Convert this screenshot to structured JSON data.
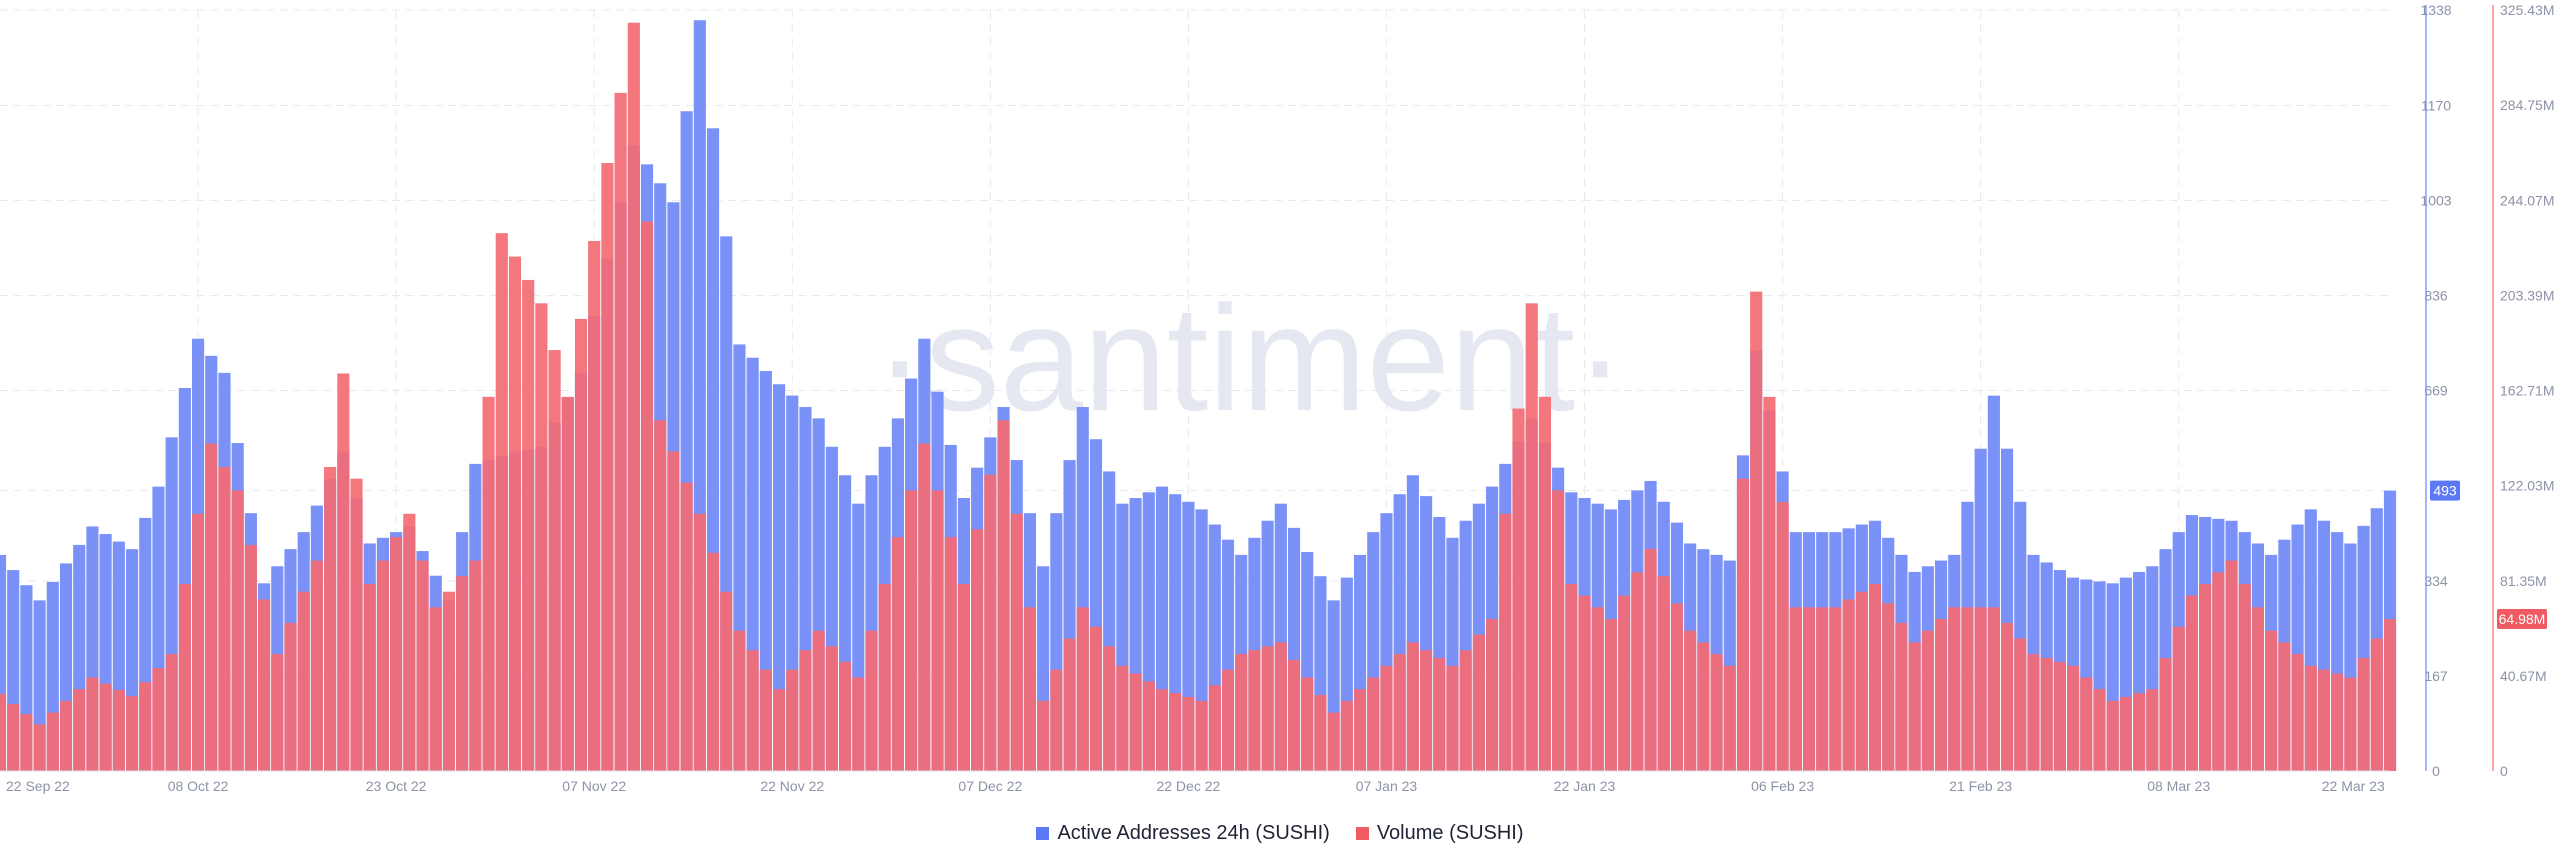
{
  "watermark": "·santiment·",
  "colors": {
    "active_addresses": "#6b86f7",
    "volume": "#f36b73",
    "grid": "#e7e9ef",
    "watermark": "#e5e8f1"
  },
  "current_values": {
    "active_addresses": "493",
    "volume": "64.98M"
  },
  "chart_data": {
    "type": "bar",
    "x_tick_labels": [
      "22 Sep 22",
      "08 Oct 22",
      "23 Oct 22",
      "07 Nov 22",
      "22 Nov 22",
      "07 Dec 22",
      "22 Dec 22",
      "07 Jan 23",
      "22 Jan 23",
      "06 Feb 23",
      "21 Feb 23",
      "08 Mar 23",
      "22 Mar 23"
    ],
    "x_range": [
      "2022-09-22",
      "2023-03-22"
    ],
    "grid": true,
    "legend_position": "bottom-center",
    "y_axes": [
      {
        "side": "right",
        "series": "Active Addresses 24h (SUSHI)",
        "ylim": [
          0,
          1338
        ],
        "tick_labels": [
          "0",
          "167",
          "334",
          "493",
          "669",
          "836",
          "1003",
          "1170",
          "1338"
        ]
      },
      {
        "side": "right-outer",
        "series": "Volume (SUSHI)",
        "ylim": [
          0,
          325430000
        ],
        "tick_labels": [
          "0",
          "40.67M",
          "81.35M",
          "122.03M",
          "162.71M",
          "203.39M",
          "244.07M",
          "284.75M",
          "325.43M"
        ]
      }
    ],
    "series": [
      {
        "name": "Active Addresses 24h (SUSHI)",
        "axis": 0,
        "points": [
          [
            "2022-09-22",
            380
          ],
          [
            "2022-09-25",
            300
          ],
          [
            "2022-09-29",
            430
          ],
          [
            "2022-10-02",
            390
          ],
          [
            "2022-10-04",
            500
          ],
          [
            "2022-10-07",
            760
          ],
          [
            "2022-10-09",
            700
          ],
          [
            "2022-10-12",
            330
          ],
          [
            "2022-10-15",
            420
          ],
          [
            "2022-10-18",
            560
          ],
          [
            "2022-10-20",
            400
          ],
          [
            "2022-10-23",
            430
          ],
          [
            "2022-10-26",
            300
          ],
          [
            "2022-10-28",
            540
          ],
          [
            "2022-10-31",
            560
          ],
          [
            "2022-11-02",
            570
          ],
          [
            "2022-11-05",
            700
          ],
          [
            "2022-11-07",
            900
          ],
          [
            "2022-11-09",
            1100
          ],
          [
            "2022-11-12",
            1000
          ],
          [
            "2022-11-14",
            1320
          ],
          [
            "2022-11-17",
            750
          ],
          [
            "2022-11-20",
            680
          ],
          [
            "2022-11-23",
            620
          ],
          [
            "2022-11-26",
            470
          ],
          [
            "2022-11-29",
            620
          ],
          [
            "2022-12-01",
            760
          ],
          [
            "2022-12-04",
            480
          ],
          [
            "2022-12-07",
            640
          ],
          [
            "2022-12-10",
            360
          ],
          [
            "2022-12-13",
            640
          ],
          [
            "2022-12-16",
            470
          ],
          [
            "2022-12-19",
            500
          ],
          [
            "2022-12-22",
            460
          ],
          [
            "2022-12-25",
            380
          ],
          [
            "2022-12-28",
            470
          ],
          [
            "2023-01-01",
            300
          ],
          [
            "2023-01-04",
            420
          ],
          [
            "2023-01-07",
            520
          ],
          [
            "2023-01-10",
            410
          ],
          [
            "2023-01-13",
            500
          ],
          [
            "2023-01-16",
            620
          ],
          [
            "2023-01-19",
            490
          ],
          [
            "2023-01-22",
            460
          ],
          [
            "2023-01-25",
            510
          ],
          [
            "2023-01-28",
            400
          ],
          [
            "2023-01-31",
            370
          ],
          [
            "2023-02-02",
            740
          ],
          [
            "2023-02-05",
            420
          ],
          [
            "2023-02-08",
            420
          ],
          [
            "2023-02-11",
            440
          ],
          [
            "2023-02-14",
            350
          ],
          [
            "2023-02-17",
            380
          ],
          [
            "2023-02-20",
            660
          ],
          [
            "2023-02-23",
            380
          ],
          [
            "2023-02-26",
            340
          ],
          [
            "2023-03-01",
            330
          ],
          [
            "2023-03-04",
            360
          ],
          [
            "2023-03-07",
            450
          ],
          [
            "2023-03-10",
            440
          ],
          [
            "2023-03-13",
            380
          ],
          [
            "2023-03-16",
            460
          ],
          [
            "2023-03-19",
            400
          ],
          [
            "2023-03-22",
            493
          ]
        ]
      },
      {
        "name": "Volume (SUSHI)",
        "axis": 1,
        "points": [
          [
            "2022-09-22",
            33000000
          ],
          [
            "2022-09-25",
            20000000
          ],
          [
            "2022-09-29",
            40000000
          ],
          [
            "2022-10-02",
            32000000
          ],
          [
            "2022-10-05",
            50000000
          ],
          [
            "2022-10-08",
            140000000
          ],
          [
            "2022-10-10",
            120000000
          ],
          [
            "2022-10-13",
            50000000
          ],
          [
            "2022-10-16",
            90000000
          ],
          [
            "2022-10-18",
            170000000
          ],
          [
            "2022-10-20",
            80000000
          ],
          [
            "2022-10-23",
            110000000
          ],
          [
            "2022-10-25",
            70000000
          ],
          [
            "2022-10-28",
            90000000
          ],
          [
            "2022-10-30",
            230000000
          ],
          [
            "2022-11-02",
            200000000
          ],
          [
            "2022-11-04",
            160000000
          ],
          [
            "2022-11-07",
            260000000
          ],
          [
            "2022-11-09",
            320000000
          ],
          [
            "2022-11-11",
            150000000
          ],
          [
            "2022-11-14",
            110000000
          ],
          [
            "2022-11-17",
            60000000
          ],
          [
            "2022-11-20",
            35000000
          ],
          [
            "2022-11-23",
            60000000
          ],
          [
            "2022-11-26",
            40000000
          ],
          [
            "2022-11-29",
            100000000
          ],
          [
            "2022-12-01",
            140000000
          ],
          [
            "2022-12-04",
            80000000
          ],
          [
            "2022-12-07",
            150000000
          ],
          [
            "2022-12-10",
            30000000
          ],
          [
            "2022-12-13",
            70000000
          ],
          [
            "2022-12-16",
            45000000
          ],
          [
            "2022-12-19",
            35000000
          ],
          [
            "2022-12-22",
            30000000
          ],
          [
            "2022-12-25",
            50000000
          ],
          [
            "2022-12-28",
            55000000
          ],
          [
            "2023-01-01",
            25000000
          ],
          [
            "2023-01-04",
            40000000
          ],
          [
            "2023-01-07",
            55000000
          ],
          [
            "2023-01-10",
            45000000
          ],
          [
            "2023-01-13",
            65000000
          ],
          [
            "2023-01-16",
            200000000
          ],
          [
            "2023-01-19",
            80000000
          ],
          [
            "2023-01-22",
            65000000
          ],
          [
            "2023-01-25",
            95000000
          ],
          [
            "2023-01-28",
            60000000
          ],
          [
            "2023-01-31",
            45000000
          ],
          [
            "2023-02-02",
            205000000
          ],
          [
            "2023-02-05",
            70000000
          ],
          [
            "2023-02-08",
            70000000
          ],
          [
            "2023-02-11",
            80000000
          ],
          [
            "2023-02-14",
            55000000
          ],
          [
            "2023-02-17",
            70000000
          ],
          [
            "2023-02-20",
            70000000
          ],
          [
            "2023-02-23",
            50000000
          ],
          [
            "2023-02-26",
            45000000
          ],
          [
            "2023-03-01",
            30000000
          ],
          [
            "2023-03-04",
            35000000
          ],
          [
            "2023-03-07",
            75000000
          ],
          [
            "2023-03-10",
            90000000
          ],
          [
            "2023-03-13",
            60000000
          ],
          [
            "2023-03-16",
            45000000
          ],
          [
            "2023-03-19",
            40000000
          ],
          [
            "2023-03-22",
            64980000
          ]
        ]
      }
    ]
  },
  "legend": [
    {
      "label": "Active Addresses 24h (SUSHI)",
      "color": "#5c79f5"
    },
    {
      "label": "Volume (SUSHI)",
      "color": "#f05a63"
    }
  ]
}
